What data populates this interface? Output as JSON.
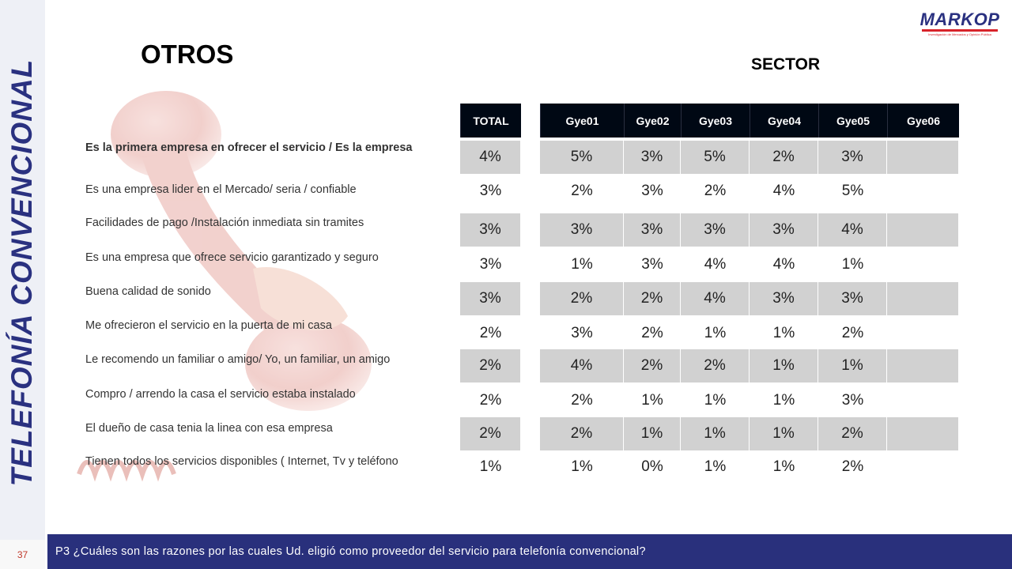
{
  "side_title": "TELEFONÍA CONVENCIONAL",
  "section_title": "OTROS",
  "sector_title": "SECTOR",
  "logo": {
    "name": "MARKOP",
    "tagline": "Investigación de Mercados y Opinión Pública"
  },
  "table": {
    "total_header": "TOTAL",
    "sector_headers": [
      "Gye01",
      "Gye02",
      "Gye03",
      "Gye04",
      "Gye05",
      "Gye06"
    ],
    "rows": [
      {
        "label": "Es la primera empresa en ofrecer el servicio / Es la empresa",
        "total": "4%",
        "values": [
          "5%",
          "3%",
          "5%",
          "2%",
          "3%",
          ""
        ]
      },
      {
        "label": "Es una empresa  lider en el Mercado/ seria / confiable",
        "total": "3%",
        "values": [
          "2%",
          "3%",
          "2%",
          "4%",
          "5%",
          ""
        ]
      },
      {
        "label": "Facilidades de pago /Instalación inmediata sin tramites",
        "total": "3%",
        "values": [
          "3%",
          "3%",
          "3%",
          "3%",
          "4%",
          ""
        ]
      },
      {
        "label": "Es una empresa que ofrece servicio garantizado y seguro",
        "total": "3%",
        "values": [
          "1%",
          "3%",
          "4%",
          "4%",
          "1%",
          ""
        ]
      },
      {
        "label": "Buena calidad de sonido",
        "total": "3%",
        "values": [
          "2%",
          "2%",
          "4%",
          "3%",
          "3%",
          ""
        ]
      },
      {
        "label": "Me ofrecieron el servicio en la puerta de mi casa",
        "total": "2%",
        "values": [
          "3%",
          "2%",
          "1%",
          "1%",
          "2%",
          ""
        ]
      },
      {
        "label": "Le recomendo un familiar o amigo/ Yo, un familiar, un amigo",
        "total": "2%",
        "values": [
          "4%",
          "2%",
          "2%",
          "1%",
          "1%",
          ""
        ]
      },
      {
        "label": "Compro / arrendo  la casa el servicio estaba instalado",
        "total": "2%",
        "values": [
          "2%",
          "1%",
          "1%",
          "1%",
          "3%",
          ""
        ]
      },
      {
        "label": "El dueño de casa tenia la linea con esa empresa",
        "total": "2%",
        "values": [
          "2%",
          "1%",
          "1%",
          "1%",
          "2%",
          ""
        ]
      },
      {
        "label": "Tienen todos los servicios disponibles ( Internet, Tv y teléfono",
        "total": "1%",
        "values": [
          "1%",
          "0%",
          "1%",
          "1%",
          "2%",
          ""
        ]
      }
    ]
  },
  "footer": {
    "page_number": "37",
    "question": "P3 ¿Cuáles son las razones por las cuales Ud. eligió como proveedor del servicio para telefonía convencional?"
  },
  "colors": {
    "header_bg": "#000814",
    "shade": "#d1d1d1",
    "brand_blue": "#29307c",
    "phone_red": "#c0392b"
  }
}
